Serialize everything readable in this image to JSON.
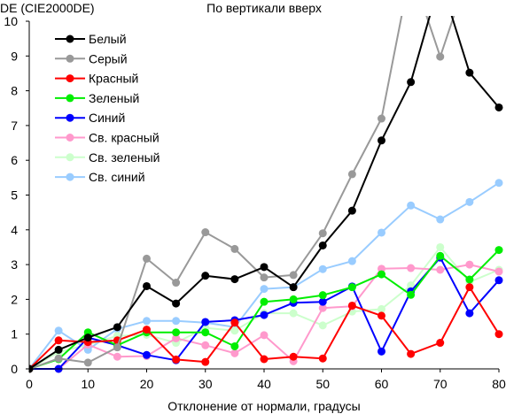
{
  "chart_data": {
    "type": "line",
    "title": "По вертикали вверх",
    "ylabel": "DE (CIE2000DE)",
    "xlabel": "Отклонение от нормали, градусы",
    "xlim": [
      0,
      80
    ],
    "ylim": [
      0,
      10
    ],
    "x_ticks": [
      "0",
      "10",
      "20",
      "30",
      "40",
      "50",
      "60",
      "70",
      "80"
    ],
    "y_ticks": [
      "0",
      "1",
      "2",
      "3",
      "4",
      "5",
      "6",
      "7",
      "8",
      "9",
      "10"
    ],
    "grid": false,
    "legend_position": "top-left",
    "x": [
      0,
      5,
      10,
      15,
      20,
      25,
      30,
      35,
      40,
      45,
      50,
      55,
      60,
      65,
      70,
      75,
      80
    ],
    "series": [
      {
        "name": "Белый",
        "color": "#000000",
        "values": [
          0,
          0.55,
          0.9,
          1.2,
          2.38,
          1.88,
          2.68,
          2.58,
          2.93,
          2.35,
          3.55,
          4.55,
          6.57,
          8.25,
          11.2,
          8.52,
          7.52
        ]
      },
      {
        "name": "Серый",
        "color": "#999999",
        "values": [
          0,
          0.3,
          0.18,
          0.62,
          3.17,
          2.48,
          3.93,
          3.45,
          2.63,
          2.7,
          3.9,
          5.6,
          7.2,
          11.5,
          8.98,
          11.5,
          null
        ]
      },
      {
        "name": "Красный",
        "color": "#ff0000",
        "values": [
          0,
          0.82,
          0.77,
          0.82,
          1.13,
          0.27,
          0.2,
          1.33,
          0.28,
          0.35,
          0.3,
          1.82,
          1.53,
          0.43,
          0.75,
          2.35,
          1.0
        ]
      },
      {
        "name": "Зеленый",
        "color": "#00ee00",
        "values": [
          0,
          0.28,
          1.05,
          0.68,
          1.05,
          1.05,
          1.05,
          0.65,
          1.93,
          2.0,
          2.12,
          2.35,
          2.72,
          2.13,
          3.25,
          2.57,
          3.42
        ]
      },
      {
        "name": "Синий",
        "color": "#0000ff",
        "values": [
          0,
          0.0,
          0.9,
          0.68,
          0.4,
          0.25,
          1.35,
          1.4,
          1.55,
          1.9,
          1.93,
          2.37,
          0.5,
          2.23,
          3.2,
          1.6,
          2.55
        ]
      },
      {
        "name": "Св. красный",
        "color": "#ff99cc",
        "values": [
          0,
          0.0,
          0.7,
          0.35,
          0.37,
          0.88,
          0.68,
          0.45,
          0.97,
          0.22,
          1.75,
          1.8,
          2.88,
          2.9,
          2.85,
          3.0,
          2.8
        ]
      },
      {
        "name": "Св. зеленый",
        "color": "#ccffcc",
        "values": [
          0,
          0.48,
          0.7,
          0.95,
          0.98,
          0.75,
          1.18,
          1.1,
          1.6,
          1.6,
          1.25,
          1.65,
          1.72,
          2.4,
          3.5,
          2.5,
          2.85
        ]
      },
      {
        "name": "Св. синий",
        "color": "#99ccff",
        "values": [
          0,
          1.1,
          0.55,
          1.15,
          1.38,
          1.38,
          1.33,
          1.2,
          2.3,
          2.35,
          2.87,
          3.1,
          3.92,
          4.7,
          4.3,
          4.8,
          5.35
        ]
      }
    ]
  }
}
